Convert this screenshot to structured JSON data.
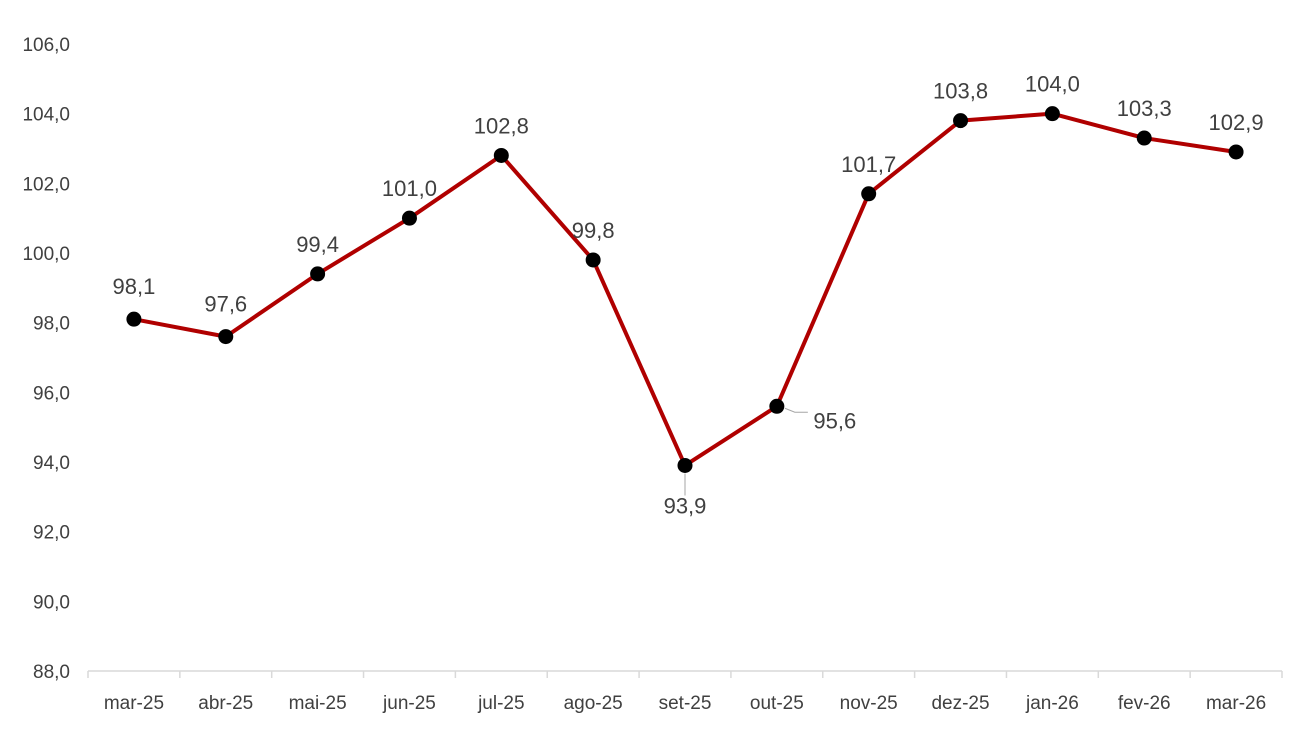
{
  "chart_data": {
    "type": "line",
    "categories": [
      "mar-25",
      "abr-25",
      "mai-25",
      "jun-25",
      "jul-25",
      "ago-25",
      "set-25",
      "out-25",
      "nov-25",
      "dez-25",
      "jan-26",
      "fev-26",
      "mar-26"
    ],
    "series": [
      {
        "values": [
          98.1,
          97.6,
          99.4,
          101.0,
          102.8,
          99.8,
          93.9,
          95.6,
          101.7,
          103.8,
          104.0,
          103.3,
          102.9
        ],
        "labels": [
          "98,1",
          "97,6",
          "99,4",
          "101,0",
          "102,8",
          "99,8",
          "93,9",
          "95,6",
          "101,7",
          "103,8",
          "104,0",
          "103,3",
          "102,9"
        ],
        "color": "#B00000",
        "marker_color": "#000000"
      }
    ],
    "ylim": [
      88,
      106
    ],
    "y_ticks": [
      "88,0",
      "90,0",
      "92,0",
      "94,0",
      "96,0",
      "98,0",
      "100,0",
      "102,0",
      "104,0",
      "106,0"
    ],
    "grid": false,
    "legend": "none",
    "axis_color": "#D9D9D9",
    "text_color": "#404040"
  }
}
